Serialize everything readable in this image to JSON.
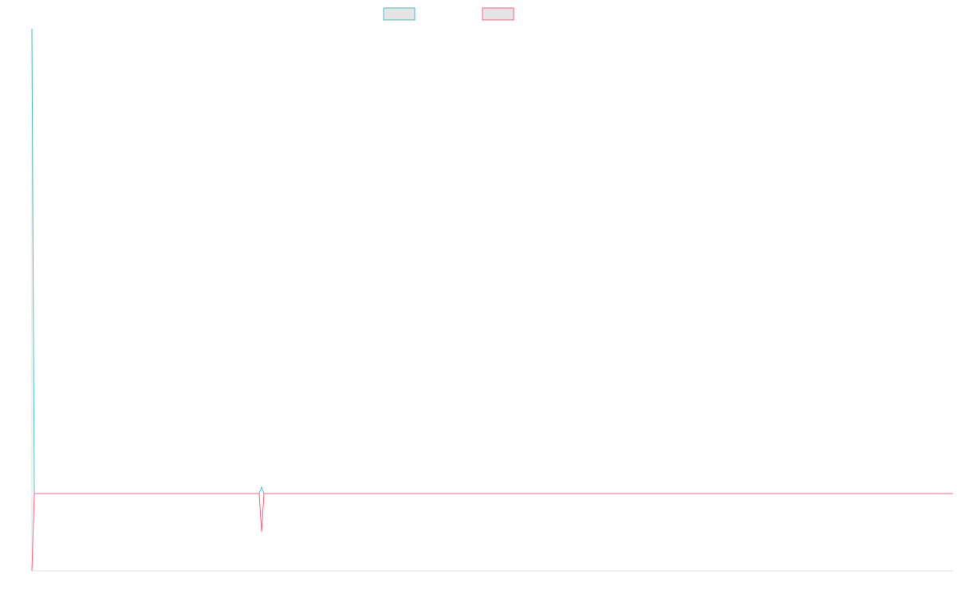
{
  "chart_data": {
    "type": "line",
    "title": "",
    "xlabel": "",
    "ylabel": "",
    "x_count": 386,
    "ylim": [
      -97,
      583
    ],
    "grid": false,
    "legend_placement": "top-center",
    "series": [
      {
        "name": "",
        "color": "#4bc0c0",
        "points": [
          [
            0,
            583
          ],
          [
            1,
            0
          ],
          [
            95,
            0
          ],
          [
            96,
            8
          ],
          [
            97,
            0
          ],
          [
            385,
            0
          ]
        ]
      },
      {
        "name": "",
        "color": "#ff6384",
        "points": [
          [
            0,
            -97
          ],
          [
            1,
            0
          ],
          [
            95,
            0
          ],
          [
            96,
            -48
          ],
          [
            97,
            0
          ],
          [
            385,
            0
          ]
        ]
      }
    ]
  }
}
